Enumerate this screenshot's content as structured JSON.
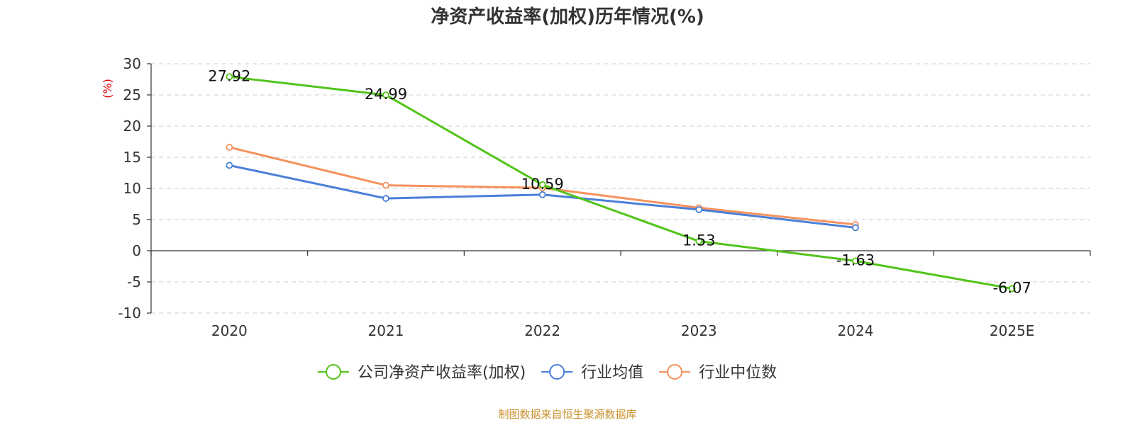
{
  "chart_data": {
    "type": "line",
    "title": "净资产收益率(加权)历年情况(%)",
    "ylabel": "(%)",
    "xlabel": "",
    "categories": [
      "2020",
      "2021",
      "2022",
      "2023",
      "2024",
      "2025E"
    ],
    "ylim": [
      -10,
      30
    ],
    "yticks": [
      30,
      25,
      20,
      15,
      10,
      5,
      0,
      -5,
      -10
    ],
    "grid": true,
    "legend_position": "bottom",
    "series": [
      {
        "name": "公司净资产收益率(加权)",
        "color": "#52c41a",
        "values": [
          27.92,
          24.99,
          10.59,
          1.53,
          -1.63,
          -6.07
        ],
        "labels": [
          "27.92",
          "24.99",
          "10.59",
          "1.53",
          "-1.63",
          "-6.07"
        ]
      },
      {
        "name": "行业均值",
        "color": "#4a7fd8",
        "values": [
          13.7,
          8.4,
          9.0,
          6.6,
          3.7,
          null
        ]
      },
      {
        "name": "行业中位数",
        "color": "#f5925e",
        "values": [
          16.6,
          10.5,
          10.1,
          6.9,
          4.2,
          null
        ]
      }
    ]
  },
  "source": "制图数据来自恒生聚源数据库"
}
